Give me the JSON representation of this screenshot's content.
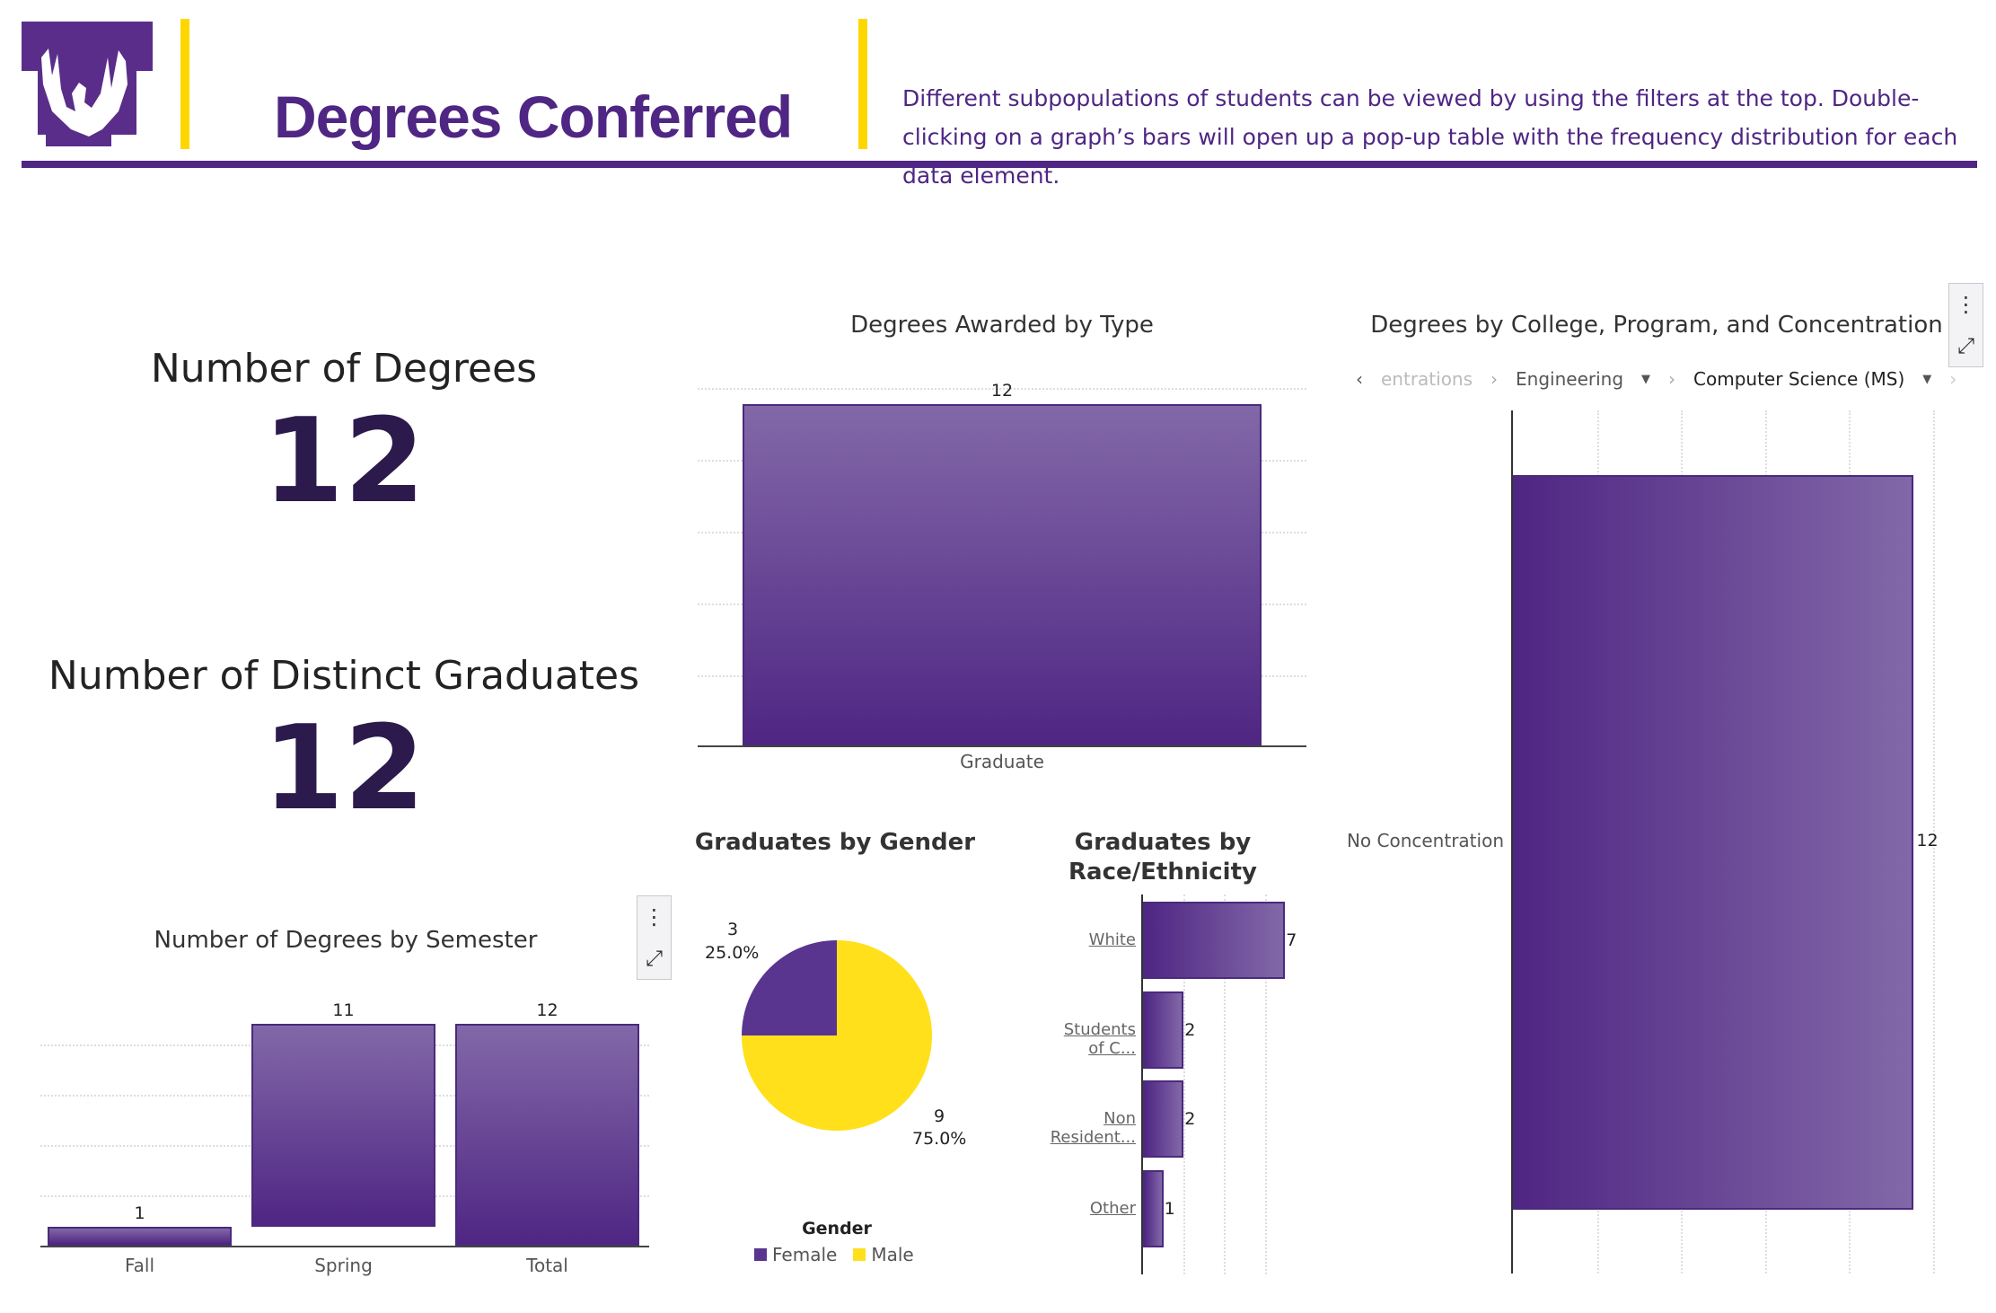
{
  "header": {
    "title": "Degrees Conferred",
    "description": "Different subpopulations of students can be viewed by using the filters at the top. Double-clicking on a graph’s bars will open up a pop-up table with the frequency distribution for each data element.",
    "colors": {
      "purple": "#4f2683",
      "gold": "#ffd700"
    }
  },
  "kpis": [
    {
      "label": "Number of Degrees",
      "value": "12"
    },
    {
      "label": "Number of Distinct Graduates",
      "value": "12"
    }
  ],
  "chart_data": [
    {
      "type": "bar",
      "title": "Number of Degrees by Semester",
      "categories": [
        "Fall",
        "Spring",
        "Total"
      ],
      "values": [
        1,
        11,
        12
      ],
      "waterfall": true,
      "ylim": [
        0,
        12
      ]
    },
    {
      "type": "bar",
      "title": "Degrees Awarded by Type",
      "categories": [
        "Graduate"
      ],
      "values": [
        12
      ],
      "ylim": [
        0,
        12
      ]
    },
    {
      "type": "pie",
      "title": "Graduates by Gender",
      "legend_title": "Gender",
      "slices": [
        {
          "name": "Female",
          "value": 3,
          "pct": "25.0%",
          "color": "#5a3590"
        },
        {
          "name": "Male",
          "value": 9,
          "pct": "75.0%",
          "color": "#ffe01a"
        }
      ]
    },
    {
      "type": "bar",
      "orientation": "horizontal",
      "title": "Graduates by Race/Ethnicity",
      "categories": [
        "White",
        "Students of C...",
        "Non Resident...",
        "Other"
      ],
      "values": [
        7,
        2,
        2,
        1
      ]
    },
    {
      "type": "bar",
      "orientation": "horizontal",
      "title": "Degrees by College, Program, and Concentration",
      "categories": [
        "No Concentration"
      ],
      "values": [
        12
      ]
    }
  ],
  "breadcrumb": {
    "items": [
      "entrations",
      "Engineering",
      "Computer Science (MS)"
    ]
  },
  "menu": {
    "more": "⋮",
    "expand": "⤢"
  }
}
